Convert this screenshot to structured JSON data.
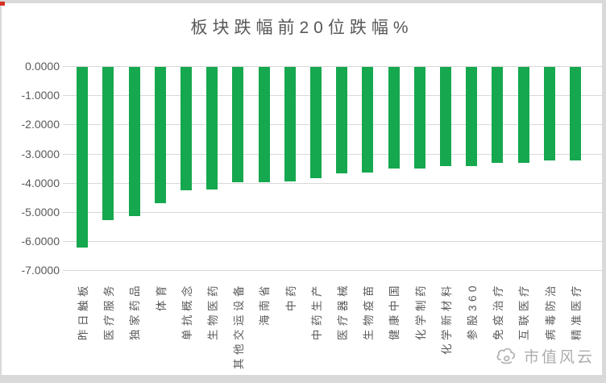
{
  "page": {
    "background_color": "#d9d9d9",
    "panel_color": "#ffffff",
    "red_marker_color": "#d93025"
  },
  "chart_data": {
    "type": "bar",
    "title": "板块跌幅前20位跌幅%",
    "categories": [
      "昨日触板",
      "医疗服务",
      "独家药品",
      "体育",
      "单抗概念",
      "生物医药",
      "其他交运设备",
      "海南省",
      "中药",
      "中药生产",
      "医疗器械",
      "生物疫苗",
      "健康中国",
      "化学制药",
      "化学新材料",
      "参股360",
      "免疫治疗",
      "互联医疗",
      "病毒防治",
      "精准医疗"
    ],
    "values": [
      -6.18,
      -5.26,
      -5.11,
      -4.66,
      -4.24,
      -4.2,
      -3.94,
      -3.94,
      -3.92,
      -3.81,
      -3.65,
      -3.63,
      -3.47,
      -3.47,
      -3.41,
      -3.41,
      -3.3,
      -3.3,
      -3.2,
      -3.2
    ],
    "xlabel": "",
    "ylabel": "",
    "ylim": [
      -7,
      0
    ],
    "y_tick_labels": [
      "0.0000",
      "-1.0000",
      "-2.0000",
      "-3.0000",
      "-4.0000",
      "-5.0000",
      "-6.0000",
      "-7.0000"
    ],
    "bar_color": "#16a84f",
    "gridline_color": "#d9d9d9",
    "axis_text_color": "#595959",
    "grid": "horizontal",
    "legend_position": "none",
    "category_label_rotation": "90-degrees-bottom-to-top"
  },
  "watermark": {
    "logo_icon": "cloud-swirl-icon",
    "text": "市值风云",
    "color": "#adadad"
  }
}
